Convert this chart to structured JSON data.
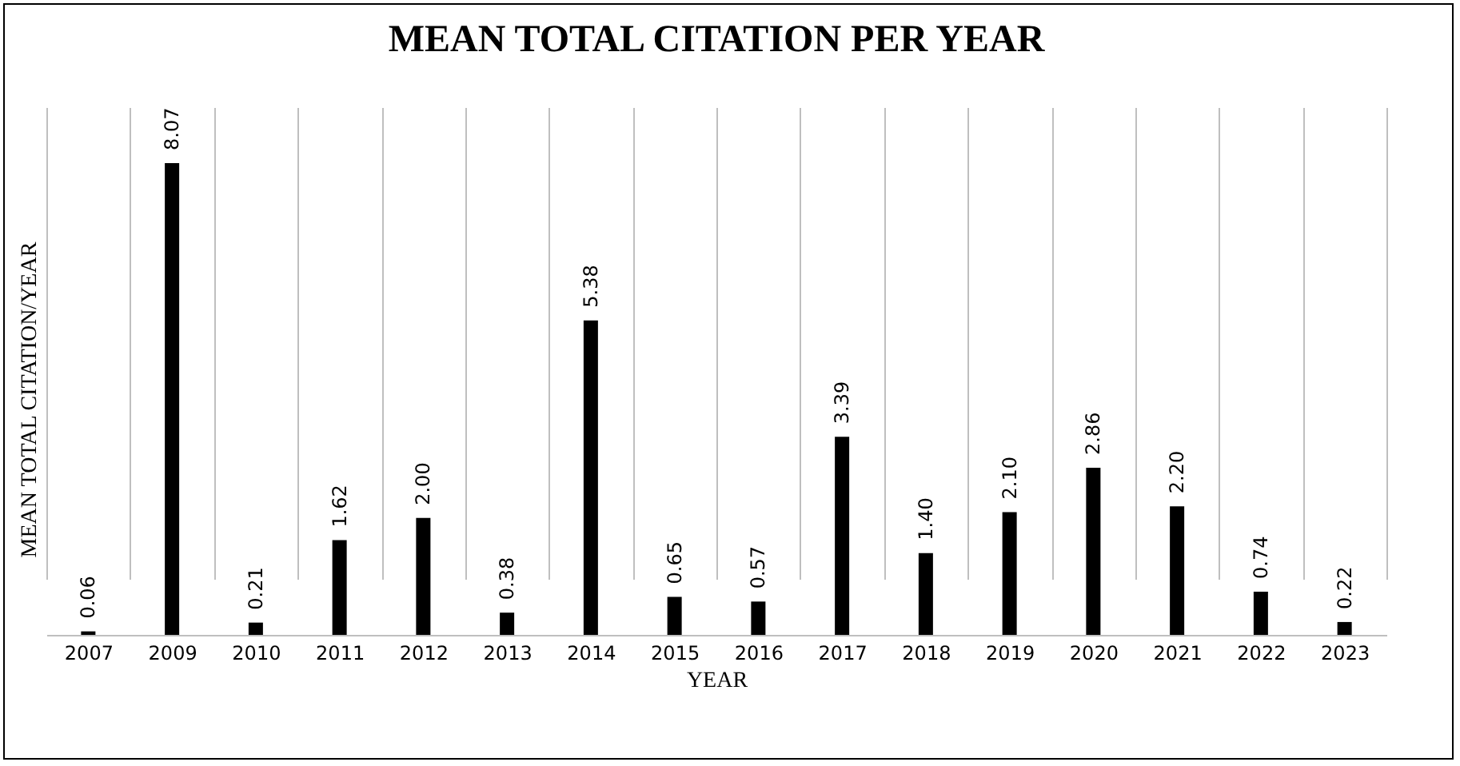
{
  "chart_data": {
    "type": "bar",
    "title": "MEAN TOTAL CITATION PER YEAR",
    "xlabel": "YEAR",
    "ylabel": "MEAN TOTAL CITATION/YEAR",
    "categories": [
      "2007",
      "2009",
      "2010",
      "2011",
      "2012",
      "2013",
      "2014",
      "2015",
      "2016",
      "2017",
      "2018",
      "2019",
      "2020",
      "2021",
      "2022",
      "2023"
    ],
    "values": [
      0.06,
      8.07,
      0.21,
      1.62,
      2.0,
      0.38,
      5.38,
      0.65,
      0.57,
      3.39,
      1.4,
      2.1,
      2.86,
      2.2,
      0.74,
      0.22
    ],
    "value_labels": [
      "0.06",
      "8.07",
      "0.21",
      "1.62",
      "2.00",
      "0.38",
      "5.38",
      "0.65",
      "0.57",
      "3.39",
      "1.40",
      "2.10",
      "2.86",
      "2.20",
      "0.74",
      "0.22"
    ],
    "color": "#000000",
    "grid": "x"
  }
}
